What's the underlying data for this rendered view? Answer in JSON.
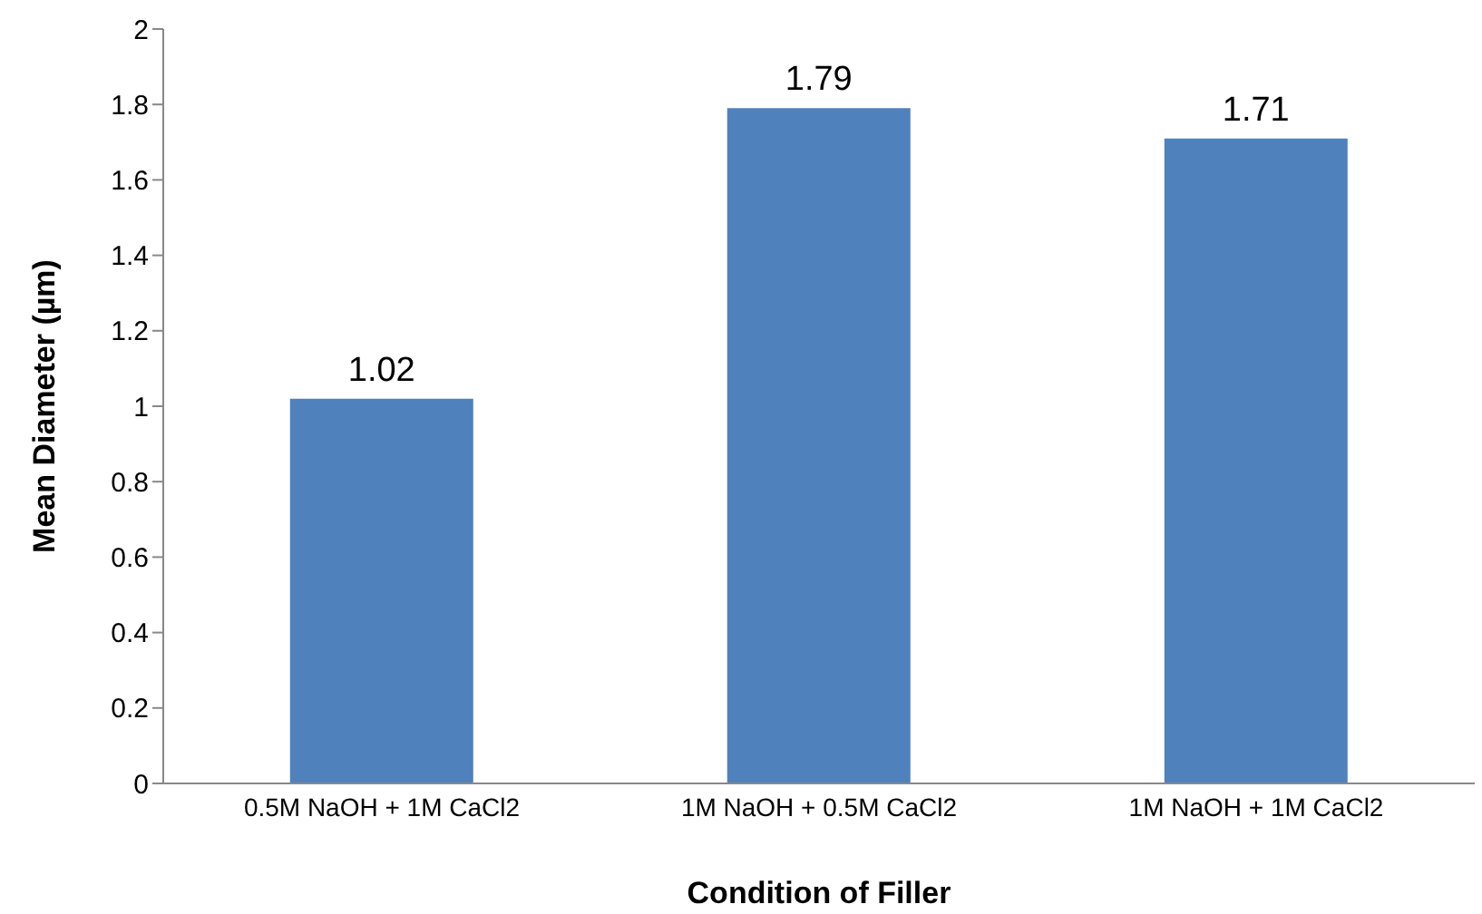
{
  "chart_data": {
    "type": "bar",
    "xlabel": "Condition of Filler",
    "ylabel": "Mean Diameter (µm)",
    "categories": [
      "0.5M NaOH + 1M CaCl2",
      "1M NaOH + 0.5M CaCl2",
      "1M NaOH + 1M CaCl2"
    ],
    "values": [
      1.02,
      1.79,
      1.71
    ],
    "color": "#4f81bd",
    "data_labels": true,
    "ylim": [
      0,
      2
    ],
    "yticks": [
      0,
      0.2,
      0.4,
      0.6,
      0.8,
      1,
      1.2,
      1.4,
      1.6,
      1.8,
      2
    ],
    "grid": false,
    "legend": false
  }
}
